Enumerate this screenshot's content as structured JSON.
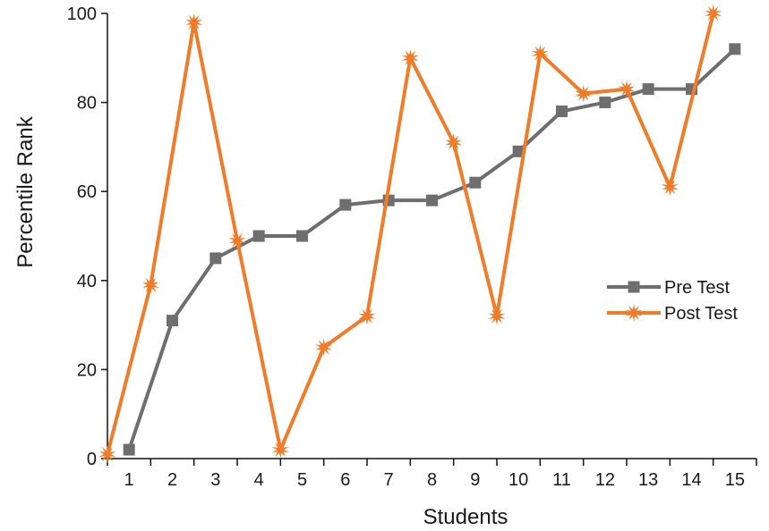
{
  "chart_data": {
    "type": "line",
    "xlabel": "Students",
    "ylabel": "Percentile Rank",
    "categories": [
      "1",
      "2",
      "3",
      "4",
      "5",
      "6",
      "7",
      "8",
      "9",
      "10",
      "11",
      "12",
      "13",
      "14",
      "15"
    ],
    "ylim": [
      0,
      100
    ],
    "yticks": [
      0,
      20,
      40,
      60,
      80,
      100
    ],
    "grid": false,
    "legend_position": "right",
    "series": [
      {
        "name": "Pre Test",
        "color": "#6e6e6e",
        "marker": "square",
        "points": [
          [
            1,
            2
          ],
          [
            2,
            31
          ],
          [
            3,
            45
          ],
          [
            4,
            50
          ],
          [
            5,
            50
          ],
          [
            6,
            57
          ],
          [
            7,
            58
          ],
          [
            8,
            58
          ],
          [
            9,
            62
          ],
          [
            10,
            69
          ],
          [
            11,
            78
          ],
          [
            12,
            80
          ],
          [
            13,
            83
          ],
          [
            14,
            83
          ],
          [
            15,
            92
          ]
        ]
      },
      {
        "name": "Post Test",
        "color": "#f07c2a",
        "marker": "star",
        "points": [
          [
            0.5,
            1
          ],
          [
            1.5,
            39
          ],
          [
            2.5,
            98
          ],
          [
            3.5,
            49
          ],
          [
            4.5,
            2
          ],
          [
            5.5,
            25
          ],
          [
            6.5,
            32
          ],
          [
            7.5,
            90
          ],
          [
            8.5,
            71
          ],
          [
            9.5,
            32
          ],
          [
            10.5,
            91
          ],
          [
            11.5,
            82
          ],
          [
            12.5,
            83
          ],
          [
            13.5,
            61
          ],
          [
            14.5,
            100
          ]
        ]
      }
    ]
  }
}
